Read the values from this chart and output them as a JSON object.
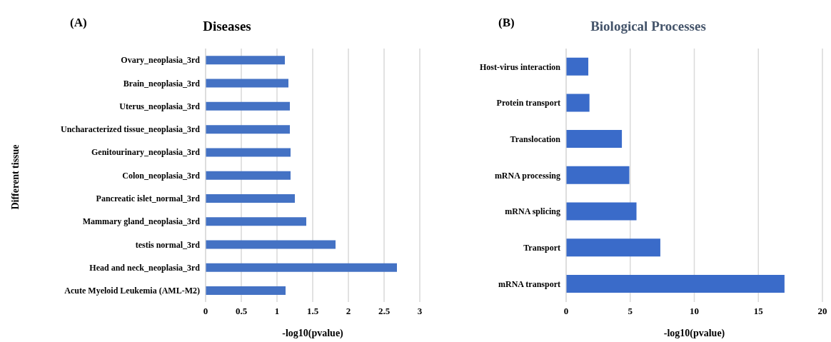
{
  "chart_data": [
    {
      "type": "bar",
      "orientation": "horizontal",
      "title": "Diseases",
      "annotations": [
        "(A)"
      ],
      "xlabel": "-log10(pvalue)",
      "ylabel": "Different tissue",
      "categories": [
        "Ovary_neoplasia_3rd",
        "Brain_neoplasia_3rd",
        "Uterus_neoplasia_3rd",
        "Uncharacterized tissue_neoplasia_3rd",
        "Genitourinary_neoplasia_3rd",
        "Colon_neoplasia_3rd",
        "Pancreatic islet_normal_3rd",
        "Mammary gland_neoplasia_3rd",
        "testis normal_3rd",
        "Head and neck_neoplasia_3rd",
        "Acute Myeloid Leukemia (AML-M2)"
      ],
      "values": [
        1.11,
        1.16,
        1.18,
        1.18,
        1.19,
        1.19,
        1.25,
        1.41,
        1.82,
        2.68,
        1.12
      ],
      "color": "#4472c4",
      "xlim": [
        0,
        3
      ],
      "xticks": [
        0,
        {
          "value": 0.5,
          "label": "0.5"
        },
        1,
        {
          "value": 1.5,
          "label": "1.5"
        },
        2,
        {
          "value": 2.5,
          "label": "2.5"
        },
        3
      ],
      "grid": "x"
    },
    {
      "type": "bar",
      "orientation": "horizontal",
      "title": "Biological Processes",
      "annotations": [
        "(B)"
      ],
      "xlabel": "-log10(pvalue)",
      "categories": [
        "Host-virus interaction",
        "Protein transport",
        "Translocation",
        "mRNA processing",
        "mRNA splicing",
        "Transport",
        "mRNA transport"
      ],
      "values": [
        1.73,
        1.82,
        4.35,
        4.93,
        5.49,
        7.35,
        17.04
      ],
      "color": "#3a6bc9",
      "xlim": [
        0,
        20
      ],
      "xticks": [
        0,
        5,
        10,
        15,
        20
      ],
      "grid": "x"
    }
  ]
}
